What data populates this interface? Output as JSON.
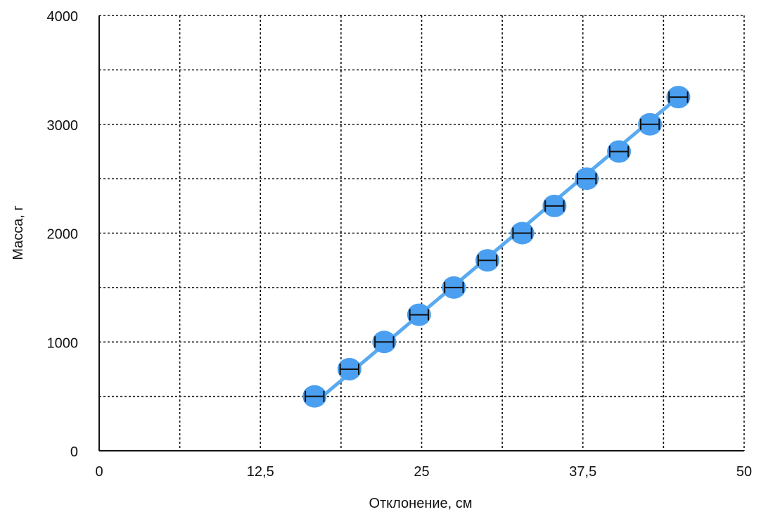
{
  "chart_data": {
    "type": "scatter",
    "xlabel": "Отклонение, см",
    "ylabel": "Масса, г",
    "xlim": [
      0,
      50
    ],
    "ylim": [
      0,
      4000
    ],
    "x_ticks": [
      "0",
      "12,5",
      "25",
      "37,5",
      "50"
    ],
    "x_tick_values": [
      0,
      12.5,
      25,
      37.5,
      50
    ],
    "y_ticks": [
      "0",
      "1000",
      "2000",
      "3000",
      "4000"
    ],
    "y_tick_values": [
      0,
      1000,
      2000,
      3000,
      4000
    ],
    "x_minor_grid": [
      6.25,
      18.75,
      31.25,
      43.75
    ],
    "y_minor_grid": [
      500,
      1500,
      2500,
      3500
    ],
    "grid": true,
    "series": [
      {
        "points": [
          {
            "x": 16.7,
            "y": 500,
            "x_err": 0.5
          },
          {
            "x": 19.4,
            "y": 750,
            "x_err": 0.5
          },
          {
            "x": 22.1,
            "y": 1000,
            "x_err": 0.5
          },
          {
            "x": 24.8,
            "y": 1250,
            "x_err": 0.5
          },
          {
            "x": 27.5,
            "y": 1500,
            "x_err": 0.5
          },
          {
            "x": 30.1,
            "y": 1750,
            "x_err": 0.5
          },
          {
            "x": 32.8,
            "y": 2000,
            "x_err": 0.5
          },
          {
            "x": 35.3,
            "y": 2250,
            "x_err": 0.5
          },
          {
            "x": 37.8,
            "y": 2500,
            "x_err": 0.5
          },
          {
            "x": 40.3,
            "y": 2750,
            "x_err": 0.5
          },
          {
            "x": 42.7,
            "y": 3000,
            "x_err": 0.5
          },
          {
            "x": 44.9,
            "y": 3250,
            "x_err": 0.5
          }
        ],
        "trendline": {
          "x_start": 16.7,
          "y_start": 440,
          "x_end": 44.9,
          "y_end": 3250
        },
        "color": "#4a9ff0",
        "line_color": "#5aaaf0"
      }
    ]
  }
}
